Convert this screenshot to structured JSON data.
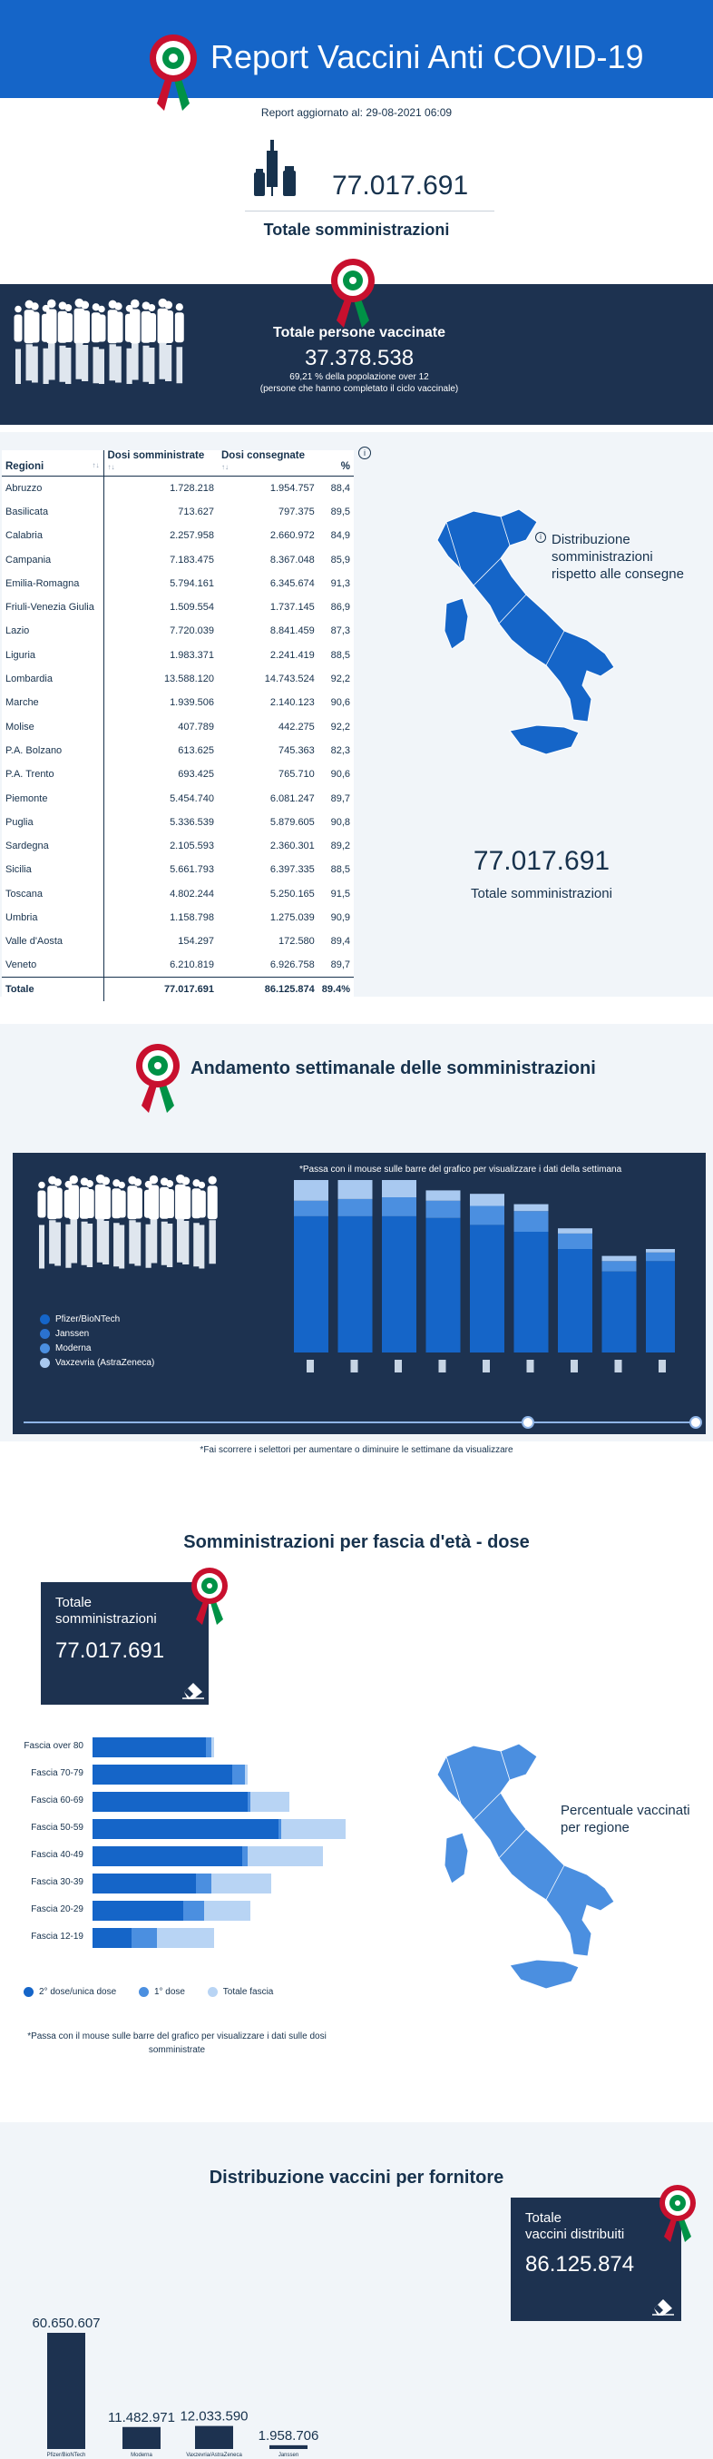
{
  "header": {
    "title": "Report Vaccini Anti COVID-19",
    "updated": "Report aggiornato al: 29-08-2021 06:09"
  },
  "totals": {
    "administrations_value": "77.017.691",
    "administrations_label": "Totale somministrazioni"
  },
  "vaccinated": {
    "title": "Totale persone vaccinate",
    "value": "37.378.538",
    "pct_line": "69,21 % della popolazione over 12",
    "note": "(persone che hanno completato il ciclo vaccinale)"
  },
  "regions_table": {
    "headers": [
      "Regioni",
      "Dosi somministrate",
      "Dosi consegnate",
      "%"
    ],
    "rows": [
      [
        "Abruzzo",
        "1.728.218",
        "1.954.757",
        "88,4"
      ],
      [
        "Basilicata",
        "713.627",
        "797.375",
        "89,5"
      ],
      [
        "Calabria",
        "2.257.958",
        "2.660.972",
        "84,9"
      ],
      [
        "Campania",
        "7.183.475",
        "8.367.048",
        "85,9"
      ],
      [
        "Emilia-Romagna",
        "5.794.161",
        "6.345.674",
        "91,3"
      ],
      [
        "Friuli-Venezia Giulia",
        "1.509.554",
        "1.737.145",
        "86,9"
      ],
      [
        "Lazio",
        "7.720.039",
        "8.841.459",
        "87,3"
      ],
      [
        "Liguria",
        "1.983.371",
        "2.241.419",
        "88,5"
      ],
      [
        "Lombardia",
        "13.588.120",
        "14.743.524",
        "92,2"
      ],
      [
        "Marche",
        "1.939.506",
        "2.140.123",
        "90,6"
      ],
      [
        "Molise",
        "407.789",
        "442.275",
        "92,2"
      ],
      [
        "P.A. Bolzano",
        "613.625",
        "745.363",
        "82,3"
      ],
      [
        "P.A. Trento",
        "693.425",
        "765.710",
        "90,6"
      ],
      [
        "Piemonte",
        "5.454.740",
        "6.081.247",
        "89,7"
      ],
      [
        "Puglia",
        "5.336.539",
        "5.879.605",
        "90,8"
      ],
      [
        "Sardegna",
        "2.105.593",
        "2.360.301",
        "89,2"
      ],
      [
        "Sicilia",
        "5.661.793",
        "6.397.335",
        "88,5"
      ],
      [
        "Toscana",
        "4.802.244",
        "5.250.165",
        "91,5"
      ],
      [
        "Umbria",
        "1.158.798",
        "1.275.039",
        "90,9"
      ],
      [
        "Valle d'Aosta",
        "154.297",
        "172.580",
        "89,4"
      ],
      [
        "Veneto",
        "6.210.819",
        "6.926.758",
        "89,7"
      ]
    ],
    "total": [
      "Totale",
      "77.017.691",
      "86.125.874",
      "89.4%"
    ]
  },
  "map1": {
    "info_glyph": "i",
    "label_line1": "Distribuzione",
    "label_line2": "somministrazioni",
    "label_line3": "rispetto alle consegne",
    "total_value": "77.017.691",
    "total_label": "Totale somministrazioni"
  },
  "weekly": {
    "title": "Andamento settimanale delle somministrazioni",
    "hint": "*Passa con il mouse sulle barre del grafico per visualizzare i dati della settimana",
    "legend": [
      "Pfizer/BioNTech",
      "Janssen",
      "Moderna",
      "Vaxzevria (AstraZeneca)"
    ],
    "bottom_note": "*Fai scorrere i selettori per aumentare o diminuire le settimane da visualizzare",
    "colors": {
      "pfizer": "#1565c8",
      "janssen": "#2b72cf",
      "moderna": "#4b8fe0",
      "astrazeneca": "#a9c9f0"
    }
  },
  "age": {
    "title": "Somministrazioni per fascia d'età - dose",
    "card_label_line1": "Totale",
    "card_label_line2": "somministrazioni",
    "card_value": "77.017.691",
    "legend": [
      "2° dose/unica dose",
      "1° dose",
      "Totale fascia"
    ],
    "map_label_line1": "Percentuale vaccinati",
    "map_label_line2": "per regione",
    "note_line1": "*Passa con il mouse sulle barre del grafico per visualizzare i dati sulle dosi",
    "note_line2": "somministrate"
  },
  "suppliers": {
    "title": "Distribuzione vaccini per fornitore",
    "card_label_line1": "Totale",
    "card_label_line2": "vaccini distribuiti",
    "card_value": "86.125.874"
  },
  "chart_data": [
    {
      "type": "bar",
      "title": "Andamento settimanale delle somministrazioni",
      "stacked": true,
      "series": [
        {
          "name": "Pfizer/BioNTech",
          "values": [
            0.79,
            0.79,
            0.79,
            0.78,
            0.74,
            0.7,
            0.6,
            0.47,
            0.53
          ]
        },
        {
          "name": "Moderna",
          "values": [
            0.09,
            0.1,
            0.11,
            0.1,
            0.11,
            0.12,
            0.09,
            0.06,
            0.05
          ]
        },
        {
          "name": "Vaxzevria (AstraZeneca)",
          "values": [
            0.12,
            0.11,
            0.1,
            0.06,
            0.07,
            0.04,
            0.03,
            0.03,
            0.02
          ]
        }
      ]
    },
    {
      "type": "bar",
      "title": "Somministrazioni per fascia d'età - dose",
      "orientation": "horizontal",
      "categories": [
        "Fascia over 80",
        "Fascia 70-79",
        "Fascia 60-69",
        "Fascia 50-59",
        "Fascia 40-49",
        "Fascia 30-39",
        "Fascia 20-29",
        "Fascia 12-19"
      ],
      "series": [
        {
          "name": "2° dose/unica dose",
          "values": [
            0.44,
            0.54,
            0.6,
            0.72,
            0.58,
            0.4,
            0.35,
            0.15
          ]
        },
        {
          "name": "1° dose",
          "values": [
            0.02,
            0.05,
            0.01,
            0.01,
            0.02,
            0.06,
            0.08,
            0.1
          ]
        },
        {
          "name": "Totale fascia",
          "values": [
            0.47,
            0.6,
            0.76,
            0.98,
            0.89,
            0.69,
            0.61,
            0.47
          ]
        }
      ]
    },
    {
      "type": "bar",
      "title": "Distribuzione vaccini per fornitore",
      "categories": [
        "Pfizer/BioNTech",
        "Moderna",
        "Vaxzevria/AstraZeneca",
        "Janssen"
      ],
      "values": [
        60650607,
        11482971,
        12033590,
        1958706
      ],
      "value_labels": [
        "60.650.607",
        "11.482.971",
        "12.033.590",
        "1.958.706"
      ]
    }
  ]
}
